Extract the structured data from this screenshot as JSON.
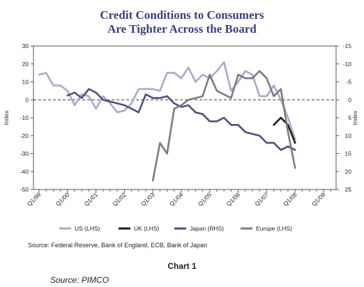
{
  "chart_data": {
    "type": "line",
    "title_line1": "Credit Conditions to Consumers",
    "title_line2": "Are Tighter Across the Board",
    "ylabel_left": "Index",
    "ylabel_right": "Index",
    "ylim_left": [
      -50,
      30
    ],
    "ylim_right": [
      25,
      -15
    ],
    "yticks_left": [
      "30",
      "20",
      "10",
      "0",
      "-10",
      "-20",
      "-30",
      "-40",
      "-50"
    ],
    "yticks_right": [
      "-15",
      "-10",
      "-5",
      "0",
      "5",
      "10",
      "15",
      "20",
      "25"
    ],
    "x_categories": [
      "Q1/99",
      "Q1/00",
      "Q1/01",
      "Q1/02",
      "Q1/03",
      "Q1/04",
      "Q1/05",
      "Q1/06",
      "Q1/07",
      "Q1/08",
      "Q1/09"
    ],
    "x_index_note": "x values are quarters counted from Q1/99 (Q1/99 = 0)",
    "series": [
      {
        "name": "US (LHS)",
        "axis": "left",
        "color": "#a9a9cc",
        "x": [
          0,
          1,
          2,
          3,
          4,
          5,
          6,
          7,
          8,
          9,
          10,
          11,
          12,
          13,
          14,
          15,
          16,
          17,
          18,
          19,
          20,
          21,
          22,
          23,
          24,
          25,
          26,
          27,
          28,
          29,
          30,
          31,
          32,
          33,
          34,
          35,
          36
        ],
        "y": [
          14,
          15,
          8,
          8,
          5,
          -3,
          3,
          2,
          -5,
          2,
          -2,
          -7,
          -6,
          -2,
          6,
          6,
          6,
          5,
          15,
          15,
          12,
          18,
          10,
          14,
          12,
          16,
          21,
          5,
          10,
          16,
          14,
          2,
          2,
          8,
          0,
          -10,
          -22
        ]
      },
      {
        "name": "UK (LHS)",
        "axis": "left",
        "color": "#1a1a1a",
        "x": [
          33,
          34,
          35,
          36
        ],
        "y": [
          -14,
          -10,
          -14,
          -24
        ]
      },
      {
        "name": "Japan (RHS)",
        "axis": "right",
        "color": "#4d5080",
        "x": [
          4,
          5,
          6,
          7,
          8,
          9,
          10,
          11,
          12,
          13,
          14,
          15,
          16,
          17,
          18,
          19,
          20,
          21,
          22,
          23,
          24,
          25,
          26,
          27,
          28,
          29,
          30,
          31,
          32,
          33,
          34,
          35,
          36
        ],
        "y": [
          -1.2,
          -2,
          -0.5,
          -3,
          -2,
          0,
          0.5,
          1,
          1.5,
          2.5,
          3.5,
          -1.5,
          -0.5,
          -0.5,
          -1,
          1,
          2,
          1.5,
          3.5,
          4,
          6,
          6,
          5,
          7,
          7,
          9,
          9.5,
          10,
          12,
          12,
          14,
          13,
          14
        ]
      },
      {
        "name": "Europe (LHS)",
        "axis": "left",
        "color": "#7b7b7b",
        "x": [
          16,
          17,
          18,
          19,
          20,
          21,
          22,
          23,
          24,
          25,
          26,
          27,
          28,
          29,
          30,
          31,
          32,
          33,
          34,
          35,
          36
        ],
        "y": [
          -45,
          -24,
          -30,
          -5,
          -3,
          0,
          1,
          2,
          14,
          5,
          3,
          1,
          14,
          12,
          12,
          16,
          12,
          2,
          6,
          -18,
          -38
        ]
      }
    ],
    "note": "Source: Federal Reserve, Bank of England, ECB, Bank of Japan"
  },
  "caption": "Chart 1",
  "source_credit": "Source: PIMCO"
}
